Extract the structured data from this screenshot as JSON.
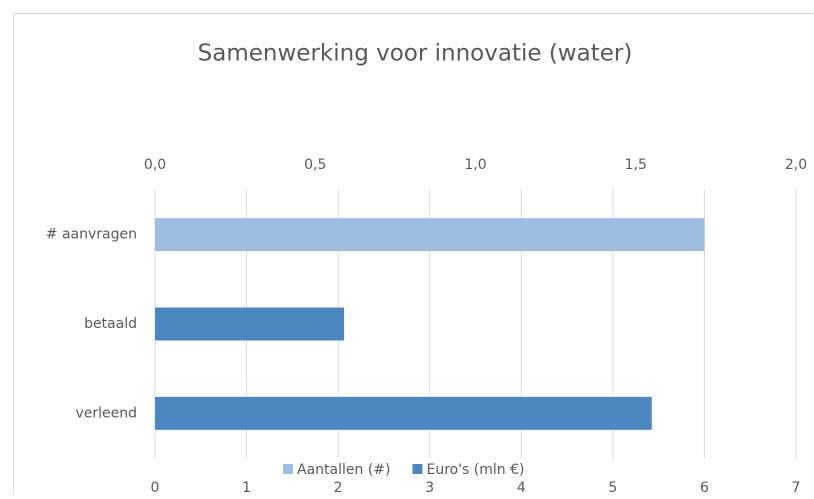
{
  "chart_data": {
    "type": "bar",
    "orientation": "horizontal",
    "title": "Samenwerking voor innovatie (water)",
    "categories": [
      "# aanvragen",
      "betaald",
      "verleend"
    ],
    "series": [
      {
        "name": "Aantallen (#)",
        "color": "#9dbde2",
        "values": [
          6,
          null,
          null
        ]
      },
      {
        "name": "Euro's (mln €)",
        "color": "#4b87c0",
        "axis": "x2",
        "values": [
          null,
          0.59,
          1.55
        ]
      }
    ],
    "xlim": [
      0,
      7
    ],
    "xticks": [
      0,
      1,
      2,
      3,
      4,
      5,
      6,
      7
    ],
    "x2lim": [
      0,
      2
    ],
    "x2ticks": [
      {
        "value": 0,
        "label": "0,0"
      },
      {
        "value": 0.5,
        "label": "0,5"
      },
      {
        "value": 1,
        "label": "1,0"
      },
      {
        "value": 1.5,
        "label": "1,5"
      },
      {
        "value": 2,
        "label": "2,0"
      }
    ],
    "grid": true,
    "legend": "bottom"
  }
}
